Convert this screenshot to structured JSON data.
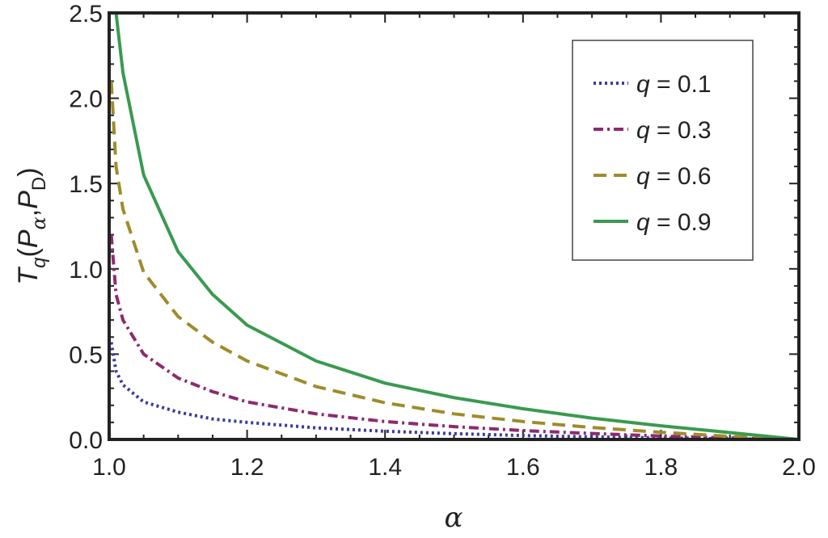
{
  "chart_data": {
    "type": "line",
    "xlabel": "α",
    "ylabel": {
      "T": "T",
      "q": "q",
      "P1": "P",
      "alpha": "α",
      "comma": ",",
      "P2": "P",
      "D": "D",
      "open": "(",
      "close": ")"
    },
    "xlim": [
      1.0,
      2.0
    ],
    "ylim": [
      0.0,
      2.5
    ],
    "x_ticks": [
      "1.0",
      "1.2",
      "1.4",
      "1.6",
      "1.8",
      "2.0"
    ],
    "y_ticks": [
      "0.0",
      "0.5",
      "1.0",
      "1.5",
      "2.0",
      "2.5"
    ],
    "legend_position": "top-right",
    "grid": false,
    "series": [
      {
        "name": "q = 0.1",
        "q": "q",
        "eq": " = 0.1",
        "color": "#3a3a9c",
        "dash": "dot",
        "x": [
          1.003,
          1.01,
          1.02,
          1.05,
          1.1,
          1.15,
          1.2,
          1.3,
          1.4,
          1.5,
          1.6,
          1.7,
          1.8,
          1.9,
          2.0
        ],
        "y": [
          0.57,
          0.4,
          0.32,
          0.22,
          0.16,
          0.12,
          0.1,
          0.068,
          0.048,
          0.034,
          0.023,
          0.015,
          0.009,
          0.004,
          0.0
        ]
      },
      {
        "name": "q = 0.3",
        "q": "q",
        "eq": " = 0.3",
        "color": "#8e2a6e",
        "dash": "dashdot",
        "x": [
          1.003,
          1.01,
          1.02,
          1.05,
          1.1,
          1.15,
          1.2,
          1.3,
          1.4,
          1.5,
          1.6,
          1.7,
          1.8,
          1.9,
          2.0
        ],
        "y": [
          1.2,
          0.85,
          0.7,
          0.5,
          0.36,
          0.28,
          0.22,
          0.15,
          0.105,
          0.075,
          0.052,
          0.035,
          0.02,
          0.009,
          0.0
        ]
      },
      {
        "name": "q = 0.6",
        "q": "q",
        "eq": " = 0.6",
        "color": "#9e8c2c",
        "dash": "dash",
        "x": [
          1.003,
          1.01,
          1.02,
          1.05,
          1.1,
          1.15,
          1.2,
          1.3,
          1.4,
          1.5,
          1.6,
          1.7,
          1.8,
          1.9,
          2.0
        ],
        "y": [
          2.1,
          1.6,
          1.35,
          0.98,
          0.72,
          0.57,
          0.46,
          0.31,
          0.215,
          0.15,
          0.105,
          0.07,
          0.042,
          0.018,
          0.0
        ]
      },
      {
        "name": "q = 0.9",
        "q": "q",
        "eq": " = 0.9",
        "color": "#3a9a50",
        "dash": "solid",
        "x": [
          1.01,
          1.02,
          1.05,
          1.1,
          1.15,
          1.2,
          1.3,
          1.4,
          1.5,
          1.6,
          1.7,
          1.8,
          1.9,
          2.0
        ],
        "y": [
          2.5,
          2.15,
          1.55,
          1.1,
          0.85,
          0.67,
          0.46,
          0.33,
          0.245,
          0.18,
          0.125,
          0.08,
          0.04,
          0.0
        ]
      }
    ]
  }
}
